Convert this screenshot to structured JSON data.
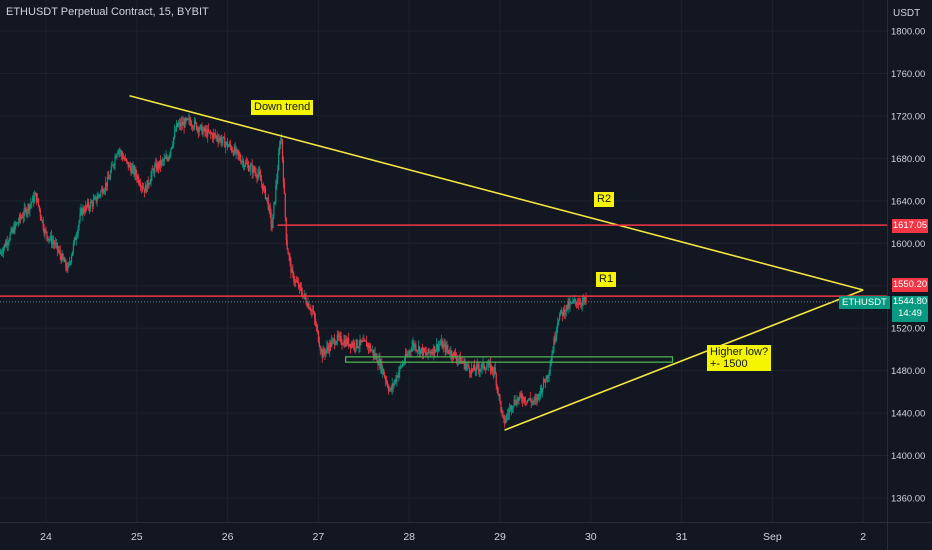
{
  "header": {
    "title": "ETHUSDT Perpetual Contract, 15, BYBIT",
    "currency": "USDT"
  },
  "colors": {
    "background": "#131722",
    "grid": "#1e222d",
    "text": "#d1d4dc",
    "candle_up": "#089981",
    "candle_down": "#f23645",
    "trendline": "#f5e642",
    "resistance": "#f23645",
    "support_zone": "#4caf50",
    "dotted": "#787b86"
  },
  "chart_data": {
    "type": "candlestick",
    "symbol": "ETHUSDT",
    "interval": "15",
    "exchange": "BYBIT",
    "y_ticks": [
      "1800.00",
      "1760.00",
      "1720.00",
      "1680.00",
      "1640.00",
      "1600.00",
      "1560.00",
      "1520.00",
      "1480.00",
      "1440.00",
      "1400.00",
      "1360.00"
    ],
    "x_ticks": [
      "24",
      "25",
      "26",
      "27",
      "28",
      "29",
      "30",
      "31",
      "Sep",
      "2"
    ],
    "ylim": [
      1330,
      1810
    ],
    "price_path": [
      [
        23.5,
        1590
      ],
      [
        23.7,
        1620
      ],
      [
        23.9,
        1645
      ],
      [
        24.0,
        1610
      ],
      [
        24.1,
        1600
      ],
      [
        24.25,
        1575
      ],
      [
        24.4,
        1630
      ],
      [
        24.55,
        1640
      ],
      [
        24.7,
        1660
      ],
      [
        24.8,
        1690
      ],
      [
        24.9,
        1675
      ],
      [
        25.0,
        1665
      ],
      [
        25.1,
        1650
      ],
      [
        25.2,
        1670
      ],
      [
        25.35,
        1680
      ],
      [
        25.45,
        1710
      ],
      [
        25.6,
        1715
      ],
      [
        25.75,
        1705
      ],
      [
        25.9,
        1700
      ],
      [
        26.05,
        1690
      ],
      [
        26.2,
        1675
      ],
      [
        26.35,
        1665
      ],
      [
        26.45,
        1640
      ],
      [
        26.5,
        1615
      ],
      [
        26.6,
        1705
      ],
      [
        26.66,
        1600
      ],
      [
        26.72,
        1570
      ],
      [
        26.85,
        1550
      ],
      [
        26.95,
        1535
      ],
      [
        27.05,
        1495
      ],
      [
        27.2,
        1510
      ],
      [
        27.4,
        1505
      ],
      [
        27.55,
        1505
      ],
      [
        27.7,
        1485
      ],
      [
        27.8,
        1460
      ],
      [
        27.9,
        1480
      ],
      [
        28.05,
        1505
      ],
      [
        28.2,
        1495
      ],
      [
        28.35,
        1505
      ],
      [
        28.5,
        1495
      ],
      [
        28.7,
        1480
      ],
      [
        28.85,
        1485
      ],
      [
        28.95,
        1480
      ],
      [
        29.05,
        1430
      ],
      [
        29.15,
        1450
      ],
      [
        29.25,
        1455
      ],
      [
        29.4,
        1450
      ],
      [
        29.55,
        1480
      ],
      [
        29.65,
        1530
      ],
      [
        29.75,
        1540
      ],
      [
        29.85,
        1545
      ],
      [
        29.95,
        1545
      ]
    ],
    "last_price": "1544.80",
    "countdown": "14:49",
    "levels": [
      {
        "name": "R2",
        "price": "1617.05"
      },
      {
        "name": "R1",
        "price": "1550.20"
      }
    ],
    "annotations": [
      {
        "id": "downtrend",
        "text": "Down trend"
      },
      {
        "id": "r2",
        "text": "R2"
      },
      {
        "id": "r1",
        "text": "R1"
      },
      {
        "id": "higher_low_1",
        "text": "Higher low?"
      },
      {
        "id": "higher_low_2",
        "text": "+- 1500"
      }
    ]
  }
}
